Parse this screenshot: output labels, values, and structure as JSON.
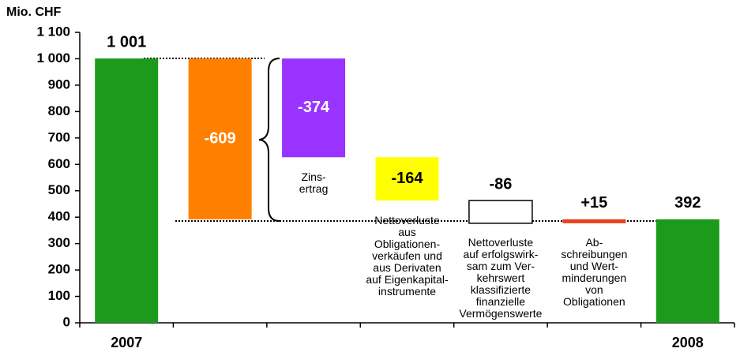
{
  "chart_data": {
    "type": "waterfall",
    "y_label": "Mio. CHF",
    "categories": [
      "2007",
      null,
      "Zins-\nertrag",
      "Nettoverluste\naus\nObligationen-\nverkäufen und\naus Derivaten\nauf Eigenkapital-\ninstrumente",
      "Nettoverluste\nauf erfolgswirk-\nsam zum Ver-\nkehrswert\nklassifizierte\nfinanzielle\nVermögenswerte",
      "Ab-\nschreibungen\nund Wert-\nminderungen\nvon\nObligationen",
      "2008"
    ],
    "values": [
      1001,
      -609,
      -374,
      -164,
      -86,
      15,
      392
    ],
    "value_labels": [
      "1 001",
      "-609",
      "-374",
      "-164",
      "-86",
      "+15",
      "392"
    ],
    "measure": [
      "absolute",
      "group",
      "relative",
      "relative",
      "relative",
      "relative",
      "absolute"
    ],
    "colors": [
      "#1b9a1b",
      "#ff8000",
      "#9933ff",
      "#ffff00",
      "#ffffff",
      "#e8401c",
      "#1b9a1b"
    ],
    "ylim": [
      0,
      1100
    ],
    "yticks": [
      0,
      100,
      200,
      300,
      400,
      500,
      600,
      700,
      800,
      900,
      {
        "value": 1000,
        "label": "1 000"
      },
      {
        "value": 1100,
        "label": "1 100"
      }
    ]
  }
}
